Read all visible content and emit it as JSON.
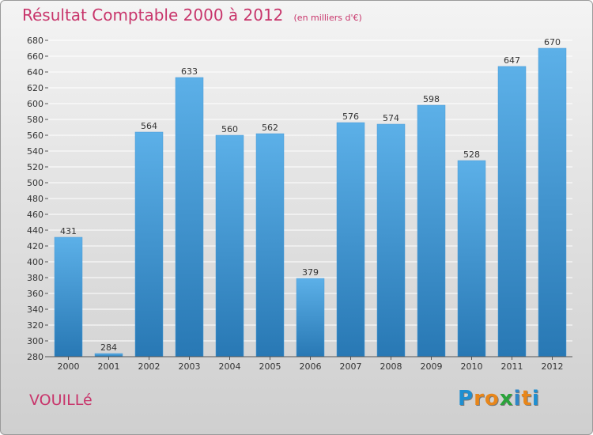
{
  "title": "Résultat Comptable 2000 à 2012",
  "subtitle": "(en milliers d'€)",
  "commune": "VOUILLé",
  "brand": {
    "letters": [
      "P",
      "r",
      "o",
      "x",
      "i",
      "t",
      "i"
    ],
    "colors": [
      "#1f8fd1",
      "#e8861a",
      "#e8861a",
      "#2aa33a",
      "#2e86c8",
      "#e8861a",
      "#1f8fd1"
    ]
  },
  "colors": {
    "bar_top": "#5cb0e8",
    "bar_bottom": "#2878b4",
    "grid": "#ffffff",
    "axis_text": "#333333",
    "accent": "#c8356b"
  },
  "chart_data": {
    "type": "bar",
    "title": "Résultat Comptable 2000 à 2012",
    "xlabel": "",
    "ylabel": "",
    "categories": [
      "2000",
      "2001",
      "2002",
      "2003",
      "2004",
      "2005",
      "2006",
      "2007",
      "2008",
      "2009",
      "2010",
      "2011",
      "2012"
    ],
    "values": [
      431,
      284,
      564,
      633,
      560,
      562,
      379,
      576,
      574,
      598,
      528,
      647,
      670
    ],
    "ylim": [
      280,
      680
    ],
    "ytick_step": 20,
    "grid": true
  }
}
